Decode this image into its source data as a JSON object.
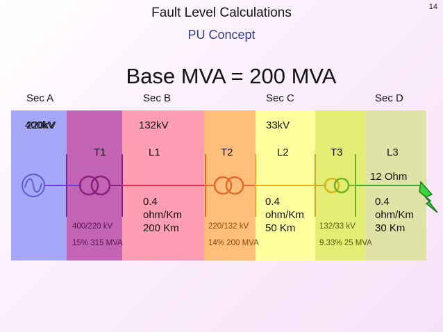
{
  "slide_number": "14",
  "title": "Fault Level Calculations",
  "subtitle": "PU Concept",
  "base_mva": "Base MVA = 200 MVA",
  "sections": [
    "Sec A",
    "Sec B",
    "Sec C",
    "Sec D"
  ],
  "voltages": {
    "sec_a_overlap_1": "400kV",
    "sec_a_overlap_2": "220kV",
    "sec_b": "132kV",
    "sec_c": "33kV"
  },
  "components": {
    "t1": "T1",
    "l1": "L1",
    "t2": "T2",
    "l2": "L2",
    "t3": "T3",
    "l3": "L3"
  },
  "t1": {
    "ratio": "400/220 kV",
    "rating": "15% 315 MVA"
  },
  "t2": {
    "ratio": "220/132 kV",
    "rating": "14% 200 MVA"
  },
  "t3": {
    "ratio": "132/33 kV",
    "rating": "9.33% 25 MVA"
  },
  "l1": {
    "line1": "0.4",
    "line2": "ohm/Km",
    "line3": "200 Km"
  },
  "l2": {
    "line1": "0.4",
    "line2": "ohm/Km",
    "line3": "50 Km"
  },
  "l3": {
    "line1": "0.4",
    "line2": "ohm/Km",
    "line3": "30 Km"
  },
  "load_impedance": "12 Ohm",
  "colors": {
    "band_a": "#a7a7f9",
    "band_t1": "#c263b4",
    "band_l1": "#ff9eb3",
    "band_t2": "#ffbe7a",
    "band_l2": "#ffff9e",
    "band_t3": "#e3ec73",
    "band_l3": "#dfe3a6",
    "fault": "#3cd43c"
  }
}
